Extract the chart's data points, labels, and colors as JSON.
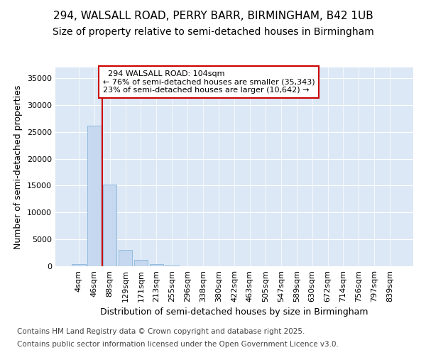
{
  "title1": "294, WALSALL ROAD, PERRY BARR, BIRMINGHAM, B42 1UB",
  "title2": "Size of property relative to semi-detached houses in Birmingham",
  "xlabel": "Distribution of semi-detached houses by size in Birmingham",
  "ylabel": "Number of semi-detached properties",
  "footnote1": "Contains HM Land Registry data © Crown copyright and database right 2025.",
  "footnote2": "Contains public sector information licensed under the Open Government Licence v3.0.",
  "bar_categories": [
    "4sqm",
    "46sqm",
    "88sqm",
    "129sqm",
    "171sqm",
    "213sqm",
    "255sqm",
    "296sqm",
    "338sqm",
    "380sqm",
    "422sqm",
    "463sqm",
    "505sqm",
    "547sqm",
    "589sqm",
    "630sqm",
    "672sqm",
    "714sqm",
    "756sqm",
    "797sqm",
    "839sqm"
  ],
  "bar_values": [
    400,
    26100,
    15200,
    3100,
    1200,
    430,
    150,
    0,
    0,
    0,
    0,
    0,
    0,
    0,
    0,
    0,
    0,
    0,
    0,
    0,
    0
  ],
  "bar_color": "#c5d8f0",
  "bar_edgecolor": "#7aaed6",
  "subject_label": "294 WALSALL ROAD: 104sqm",
  "pct_smaller": 76,
  "n_smaller": 35343,
  "pct_larger": 23,
  "n_larger": 10642,
  "vline_color": "#cc0000",
  "vline_x_index": 1.5,
  "ylim": [
    0,
    37000
  ],
  "yticks": [
    0,
    5000,
    10000,
    15000,
    20000,
    25000,
    30000,
    35000
  ],
  "background_color": "#ffffff",
  "plot_bg_color": "#dce8f5",
  "grid_color": "#ffffff",
  "annotation_box_edgecolor": "#cc0000",
  "title_fontsize": 11,
  "subtitle_fontsize": 10,
  "axis_label_fontsize": 9,
  "tick_fontsize": 8,
  "footnote_fontsize": 7.5
}
